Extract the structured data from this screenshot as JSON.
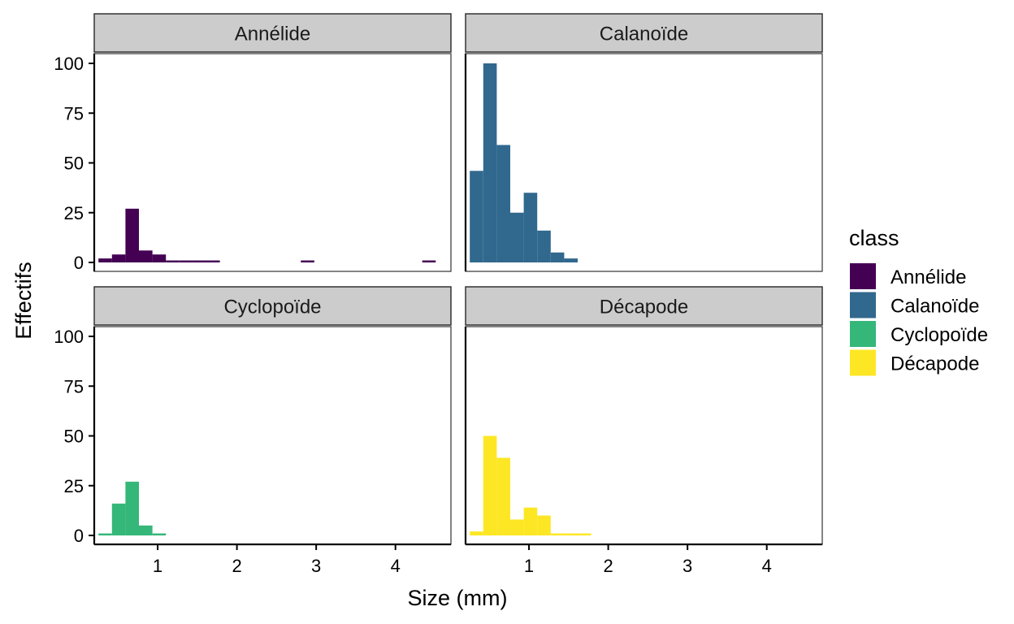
{
  "chart_data": {
    "type": "bar",
    "subtype": "faceted-histogram",
    "xlabel": "Size (mm)",
    "ylabel": "Effectifs",
    "xlim": [
      0.2,
      4.7
    ],
    "ylim": [
      0,
      100
    ],
    "x_ticks": [
      1,
      2,
      3,
      4
    ],
    "y_ticks": [
      0,
      25,
      50,
      75,
      100
    ],
    "bin_width": 0.1702,
    "bins": [
      0.2532,
      0.4234,
      0.5936,
      0.7638,
      0.934,
      1.1042,
      1.2744,
      1.4446,
      1.6148,
      1.785,
      1.9552,
      2.1254,
      2.2956,
      2.4658,
      2.636,
      2.8062,
      2.9764,
      3.1466,
      3.3168,
      3.487,
      3.6572,
      3.8274,
      3.9976,
      4.1678,
      4.338,
      4.5082
    ],
    "legend": {
      "title": "class",
      "position": "right",
      "entries": [
        {
          "name": "Annélide",
          "color": "#440154"
        },
        {
          "name": "Calanoïde",
          "color": "#31688E"
        },
        {
          "name": "Cyclopoïde",
          "color": "#35B779"
        },
        {
          "name": "Décapode",
          "color": "#FDE725"
        }
      ]
    },
    "series": [
      {
        "name": "Annélide",
        "color": "#440154",
        "values": [
          2,
          4,
          27,
          6,
          4,
          1,
          1,
          1,
          1,
          0,
          0,
          0,
          0,
          0,
          0,
          1,
          0,
          0,
          0,
          0,
          0,
          0,
          0,
          0,
          1,
          0
        ]
      },
      {
        "name": "Calanoïde",
        "color": "#31688E",
        "values": [
          46,
          100,
          59,
          25,
          35,
          16,
          5,
          2,
          0,
          0,
          0,
          0,
          0,
          0,
          0,
          0,
          0,
          0,
          0,
          0,
          0,
          0,
          0,
          0,
          0,
          0
        ]
      },
      {
        "name": "Cyclopoïde",
        "color": "#35B779",
        "values": [
          1,
          16,
          27,
          5,
          1,
          0,
          0,
          0,
          0,
          0,
          0,
          0,
          0,
          0,
          0,
          0,
          0,
          0,
          0,
          0,
          0,
          0,
          0,
          0,
          0,
          0
        ]
      },
      {
        "name": "Décapode",
        "color": "#FDE725",
        "values": [
          2,
          50,
          39,
          8,
          14,
          10,
          1,
          1,
          1,
          0,
          0,
          0,
          0,
          0,
          0,
          0,
          0,
          0,
          0,
          0,
          0,
          0,
          0,
          0,
          0,
          0
        ]
      }
    ]
  },
  "colors": {
    "strip_fill": "#CCCCCC",
    "axis": "#000000"
  }
}
